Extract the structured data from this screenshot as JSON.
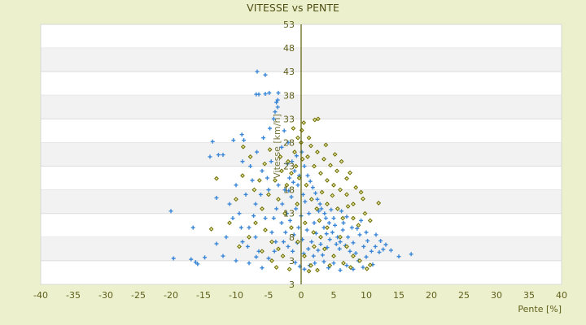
{
  "chart_data": {
    "type": "scatter",
    "title": "VITESSE vs PENTE",
    "xlabel": "Pente [%]",
    "ylabel": "Vitesse [km/h]",
    "xlim": [
      -40,
      40
    ],
    "ylim": [
      -2,
      53
    ],
    "x_ticks": [
      "-40",
      "-35",
      "-30",
      "-25",
      "-20",
      "-15",
      "-10",
      "-5",
      "0",
      "5",
      "10",
      "15",
      "20",
      "25",
      "30",
      "35",
      "40"
    ],
    "y_ticks": [
      "53",
      "48",
      "43",
      "38",
      "33",
      "28",
      "23",
      "18",
      "13",
      "8",
      "3",
      "3"
    ],
    "grid": true,
    "alternating_bands": true,
    "legend": "none",
    "colors": {
      "background": "#ecf0cd",
      "blue_series": "#3a86d6",
      "olive_series": "#6b6b00",
      "axis": "#5a5a00",
      "band": "#f2f2f2"
    },
    "series": [
      {
        "marker": "plus",
        "color": "#3a86d6",
        "points": [
          [
            -2.5,
            18
          ],
          [
            -1.8,
            20.5
          ],
          [
            -1,
            22
          ],
          [
            -0.5,
            19
          ],
          [
            0.3,
            17
          ],
          [
            1,
            21
          ],
          [
            1.8,
            18.5
          ],
          [
            2.5,
            16
          ],
          [
            3.1,
            14
          ],
          [
            3.8,
            12
          ],
          [
            -2.9,
            15
          ],
          [
            -2.2,
            13
          ],
          [
            -1.5,
            16.5
          ],
          [
            -0.8,
            14
          ],
          [
            0,
            12.5
          ],
          [
            0.6,
            15.5
          ],
          [
            1.2,
            13
          ],
          [
            2,
            11
          ],
          [
            2.7,
            13.5
          ],
          [
            3.5,
            10
          ],
          [
            -3,
            11
          ],
          [
            -2.4,
            9
          ],
          [
            -1.7,
            11.5
          ],
          [
            -1.1,
            8.5
          ],
          [
            -0.4,
            10
          ],
          [
            0.2,
            7.5
          ],
          [
            0.9,
            9.5
          ],
          [
            1.6,
            7
          ],
          [
            2.3,
            8.8
          ],
          [
            3,
            6.5
          ],
          [
            -2.7,
            7
          ],
          [
            -2,
            6
          ],
          [
            -1.3,
            5
          ],
          [
            -0.6,
            6.8
          ],
          [
            0.4,
            4.5
          ],
          [
            1.1,
            5.5
          ],
          [
            1.9,
            4
          ],
          [
            2.6,
            5.2
          ],
          [
            3.3,
            4.2
          ],
          [
            4,
            5.8
          ],
          [
            -1.9,
            17.8
          ],
          [
            -1.2,
            19.6
          ],
          [
            -0.3,
            21
          ],
          [
            0.5,
            23
          ],
          [
            1.4,
            19.8
          ],
          [
            2.2,
            17.3
          ],
          [
            2.9,
            15
          ],
          [
            3.6,
            13
          ],
          [
            4.3,
            11
          ],
          [
            4.8,
            9
          ],
          [
            -3.5,
            19
          ],
          [
            -3.8,
            14
          ],
          [
            -4.2,
            12
          ],
          [
            -4.5,
            9
          ],
          [
            -3.9,
            7
          ],
          [
            -4.1,
            5
          ],
          [
            -2.1,
            23.5
          ],
          [
            -1.4,
            24
          ],
          [
            -0.7,
            25.2
          ],
          [
            0.1,
            26
          ],
          [
            5.2,
            10.5
          ],
          [
            5.6,
            8
          ],
          [
            6,
            7
          ],
          [
            6.4,
            9.5
          ],
          [
            5.9,
            5.5
          ],
          [
            6.8,
            6.2
          ],
          [
            7.2,
            8
          ],
          [
            7.5,
            5
          ],
          [
            8,
            6.8
          ],
          [
            8.4,
            4.6
          ],
          [
            4.6,
            13.8
          ],
          [
            5,
            12
          ],
          [
            5.4,
            6.5
          ],
          [
            4.4,
            7.5
          ],
          [
            3.9,
            8.7
          ],
          [
            2.1,
            2.5
          ],
          [
            1.3,
            2
          ],
          [
            0.5,
            1.2
          ],
          [
            -0.2,
            1.8
          ],
          [
            -0.9,
            2.6
          ],
          [
            -5,
            18
          ],
          [
            -6,
            22
          ],
          [
            -7,
            15
          ],
          [
            -8,
            10
          ],
          [
            -9,
            7
          ],
          [
            -6.5,
            5
          ],
          [
            -5.5,
            12
          ],
          [
            -7.5,
            20
          ],
          [
            -8.5,
            17
          ],
          [
            -9.5,
            13
          ],
          [
            -10,
            3
          ],
          [
            -8,
            2.5
          ],
          [
            -6,
            1.5
          ],
          [
            -5,
            3.5
          ],
          [
            -7,
            8
          ],
          [
            -9,
            24
          ],
          [
            -10,
            19
          ],
          [
            -11,
            15
          ],
          [
            -11.5,
            8
          ],
          [
            -12,
            4
          ],
          [
            -6.8,
            26
          ],
          [
            -5.8,
            29
          ],
          [
            -4.8,
            31
          ],
          [
            -4.2,
            33
          ],
          [
            -3.6,
            35.5
          ],
          [
            -3.8,
            36.5
          ],
          [
            -4,
            34.5
          ],
          [
            -2.6,
            30.5
          ],
          [
            -2,
            28
          ],
          [
            -3,
            27
          ],
          [
            -4.6,
            24
          ],
          [
            -5.2,
            20.5
          ],
          [
            -6.2,
            17
          ],
          [
            -7.3,
            12.5
          ],
          [
            -8.2,
            6
          ],
          [
            -9.2,
            10
          ],
          [
            -10.5,
            12
          ],
          [
            -8.8,
            28.5
          ],
          [
            -7.8,
            23
          ],
          [
            -6.9,
            3.8
          ],
          [
            -20,
            13.5
          ],
          [
            -19.6,
            3.5
          ],
          [
            -16.9,
            3.3
          ],
          [
            -16.2,
            2.7
          ],
          [
            -15.9,
            2.3
          ],
          [
            -14.8,
            3.7
          ],
          [
            -16.6,
            10
          ],
          [
            -13.6,
            28.2
          ],
          [
            -14,
            25
          ],
          [
            -12.7,
            25.4
          ],
          [
            -12,
            25.4
          ],
          [
            -13,
            16.3
          ],
          [
            -13,
            6.6
          ],
          [
            -10.4,
            28.5
          ],
          [
            -9.1,
            29.7
          ],
          [
            -6.75,
            43
          ],
          [
            -5.5,
            42.3
          ],
          [
            -6.9,
            38.2
          ],
          [
            -6.5,
            38.2
          ],
          [
            -5.5,
            38.3
          ],
          [
            -4.9,
            38.5
          ],
          [
            -3.5,
            38.5
          ],
          [
            -3.6,
            37
          ],
          [
            16.9,
            4.4
          ],
          [
            15,
            3.9
          ],
          [
            13.8,
            5.2
          ],
          [
            12.6,
            5.4
          ],
          [
            12,
            4.8
          ],
          [
            11.4,
            6
          ],
          [
            10.8,
            5
          ],
          [
            10.2,
            7.2
          ],
          [
            9.6,
            6
          ],
          [
            9,
            8.5
          ],
          [
            8.8,
            3
          ],
          [
            10,
            3.8
          ],
          [
            11,
            2.2
          ],
          [
            9.5,
            1.6
          ],
          [
            8,
            1.2
          ],
          [
            7,
            2
          ],
          [
            6,
            1
          ],
          [
            5,
            2.5
          ],
          [
            4.2,
            1.5
          ],
          [
            3.5,
            2.8
          ],
          [
            6.5,
            11
          ],
          [
            7,
            12.3
          ],
          [
            7.8,
            10
          ],
          [
            8.6,
            9.8
          ],
          [
            9.2,
            11.5
          ],
          [
            10,
            9
          ],
          [
            11.5,
            8.5
          ],
          [
            12.2,
            7.2
          ],
          [
            13,
            6.4
          ],
          [
            6.2,
            13.5
          ]
        ]
      },
      {
        "marker": "diamond",
        "color": "#6b6b00",
        "points": [
          [
            -13,
            20.4
          ],
          [
            -13.8,
            9.7
          ],
          [
            2.1,
            32.8
          ],
          [
            2.6,
            33
          ],
          [
            0.1,
            30.6
          ],
          [
            11.9,
            15.2
          ],
          [
            9.5,
            16.1
          ],
          [
            10.1,
            1.3
          ],
          [
            10.6,
            2.1
          ],
          [
            -8.9,
            27.1
          ],
          [
            7.5,
            21.6
          ],
          [
            7,
            20.4
          ],
          [
            9.2,
            17.5
          ],
          [
            -2,
            24
          ],
          [
            -1,
            26
          ],
          [
            0,
            28
          ],
          [
            1,
            25
          ],
          [
            2,
            23
          ],
          [
            3,
            21.5
          ],
          [
            4,
            20
          ],
          [
            5,
            19
          ],
          [
            6,
            18
          ],
          [
            7,
            17
          ],
          [
            8,
            15
          ],
          [
            5.5,
            22
          ],
          [
            4.5,
            23.2
          ],
          [
            3.5,
            24.5
          ],
          [
            2.5,
            26
          ],
          [
            1.5,
            27.3
          ],
          [
            -0.5,
            29
          ],
          [
            -3,
            22
          ],
          [
            -4,
            20
          ],
          [
            -5,
            17
          ],
          [
            -6,
            14
          ],
          [
            -7,
            11
          ],
          [
            -8,
            8
          ],
          [
            -3.5,
            16
          ],
          [
            -2.5,
            13
          ],
          [
            -1.5,
            10
          ],
          [
            -0.5,
            7
          ],
          [
            0.5,
            4
          ],
          [
            1.5,
            2
          ],
          [
            2.5,
            1
          ],
          [
            -2.8,
            4
          ],
          [
            -4.5,
            3
          ],
          [
            -6,
            5
          ],
          [
            0.8,
            19
          ],
          [
            1.6,
            16
          ],
          [
            2.4,
            14
          ],
          [
            3.2,
            17.5
          ],
          [
            4,
            15
          ],
          [
            4.8,
            16.8
          ],
          [
            5.6,
            14
          ],
          [
            6.4,
            12
          ],
          [
            7.2,
            14.5
          ],
          [
            8,
            12
          ],
          [
            8.8,
            10.5
          ],
          [
            6,
            8
          ],
          [
            7,
            6
          ],
          [
            8,
            4
          ],
          [
            9,
            3
          ],
          [
            4,
            10
          ],
          [
            3,
            8
          ],
          [
            2,
            6
          ],
          [
            5,
            4
          ],
          [
            6.5,
            2.5
          ],
          [
            -1.5,
            21.5
          ],
          [
            -0.8,
            23
          ],
          [
            0.2,
            24.5
          ],
          [
            -2.2,
            19
          ],
          [
            -3.2,
            25
          ],
          [
            -4.8,
            26.5
          ],
          [
            -5.6,
            23.5
          ],
          [
            -6.4,
            20
          ],
          [
            -7.2,
            18
          ],
          [
            -7.8,
            25
          ],
          [
            -9,
            21
          ],
          [
            -10,
            16
          ],
          [
            -5.5,
            9.5
          ],
          [
            -4.5,
            7
          ],
          [
            -3.5,
            5.5
          ],
          [
            -9.5,
            6
          ],
          [
            -11,
            11
          ],
          [
            3.8,
            27.5
          ],
          [
            5.2,
            25.5
          ],
          [
            6.2,
            24
          ],
          [
            1.2,
            29
          ],
          [
            -1.2,
            31
          ],
          [
            0.4,
            32.2
          ],
          [
            -0.3,
            20.5
          ],
          [
            0.6,
            11
          ],
          [
            1.9,
            9
          ],
          [
            -0.6,
            15
          ],
          [
            2.8,
            11.5
          ],
          [
            3.6,
            5.5
          ],
          [
            4.4,
            2
          ],
          [
            1.2,
            0.8
          ],
          [
            -1.8,
            1.2
          ],
          [
            -3.8,
            1.6
          ],
          [
            9.8,
            13
          ],
          [
            8.4,
            18.5
          ],
          [
            10.6,
            11.5
          ],
          [
            7.6,
            1.6
          ]
        ]
      }
    ]
  }
}
